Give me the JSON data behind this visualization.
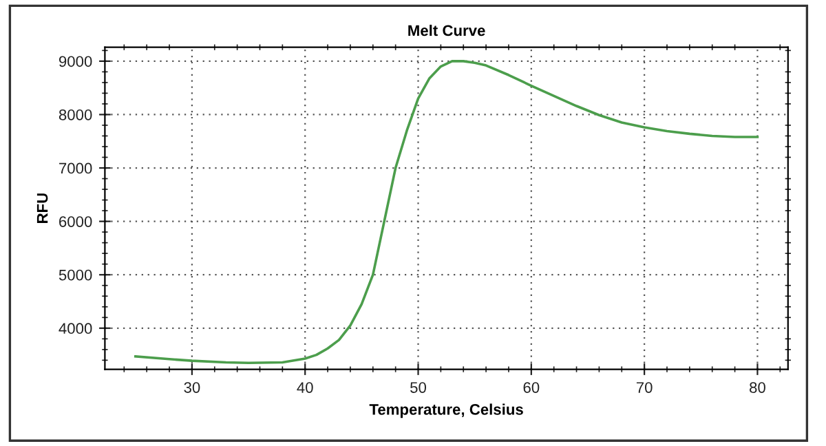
{
  "chart_data": {
    "type": "line",
    "title": "Melt Curve",
    "xlabel": "Temperature, Celsius",
    "ylabel": "RFU",
    "x": [
      25,
      28,
      30,
      33,
      35,
      38,
      40,
      41,
      42,
      43,
      44,
      45,
      46,
      47,
      48,
      49,
      50,
      51,
      52,
      53,
      54,
      55,
      56,
      58,
      60,
      62,
      64,
      66,
      68,
      70,
      72,
      74,
      76,
      78,
      80
    ],
    "series": [
      {
        "color": "#4c9e4c",
        "values": [
          3470,
          3420,
          3390,
          3360,
          3350,
          3360,
          3430,
          3500,
          3620,
          3780,
          4050,
          4450,
          5000,
          6000,
          7000,
          7700,
          8300,
          8680,
          8900,
          9000,
          9000,
          8970,
          8920,
          8740,
          8540,
          8350,
          8160,
          7990,
          7850,
          7760,
          7690,
          7640,
          7600,
          7580,
          7580
        ]
      }
    ],
    "xlim": [
      22.3,
      82.7
    ],
    "ylim": [
      3230,
      9260
    ],
    "xticks": [
      30,
      40,
      50,
      60,
      70,
      80
    ],
    "yticks": [
      4000,
      5000,
      6000,
      7000,
      8000,
      9000
    ],
    "grid": true,
    "legend": false,
    "marker": "none",
    "line_style": "solid"
  }
}
